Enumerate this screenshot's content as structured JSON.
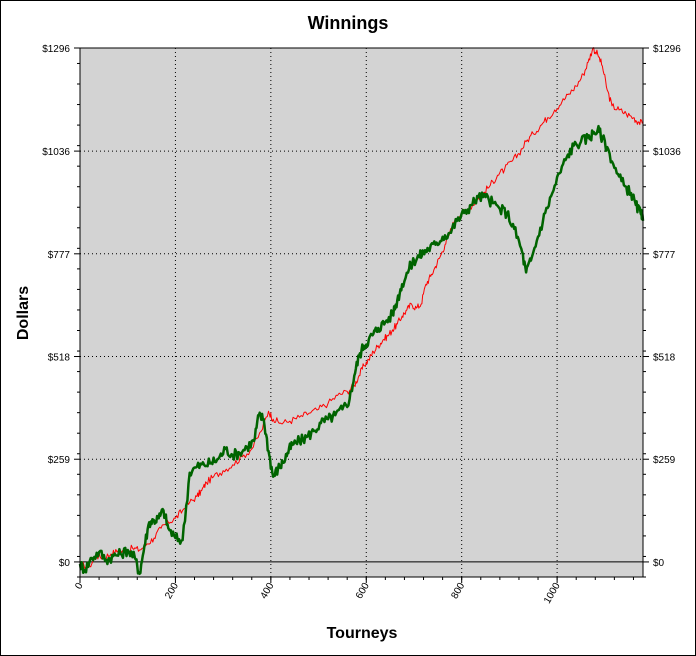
{
  "chart_data": {
    "type": "line",
    "title": "Winnings",
    "xlabel": "Tourneys",
    "ylabel": "Dollars",
    "xlim": [
      0,
      1180
    ],
    "ylim": [
      -38,
      1296
    ],
    "x_ticks": [
      0,
      200,
      400,
      600,
      800,
      1000
    ],
    "x_tick_labels": [
      "0",
      "200",
      "400",
      "600",
      "800",
      "1000"
    ],
    "y_ticks": [
      0,
      259,
      518,
      777,
      1036,
      1296
    ],
    "y_tick_labels": [
      "$0",
      "$259",
      "$518",
      "$777",
      "$1036",
      "$1296"
    ],
    "grid": true,
    "plot_background": "#d3d3d3",
    "series": [
      {
        "color": "#ff0000",
        "x": [
          0,
          20,
          35,
          50,
          65,
          80,
          95,
          110,
          125,
          140,
          155,
          170,
          185,
          200,
          215,
          230,
          245,
          255,
          265,
          280,
          300,
          320,
          340,
          360,
          380,
          395,
          405,
          420,
          440,
          460,
          480,
          500,
          520,
          540,
          560,
          575,
          585,
          595,
          605,
          615,
          625,
          635,
          645,
          655,
          665,
          675,
          685,
          695,
          705,
          715,
          725,
          735,
          745,
          755,
          765,
          775,
          785,
          800,
          815,
          830,
          845,
          860,
          875,
          890,
          905,
          920,
          935,
          950,
          965,
          980,
          995,
          1010,
          1025,
          1040,
          1055,
          1065,
          1075,
          1085,
          1095,
          1105,
          1115,
          1130,
          1145,
          1160,
          1170,
          1180
        ],
        "y": [
          -8,
          -10,
          15,
          12,
          20,
          28,
          25,
          35,
          30,
          45,
          60,
          85,
          100,
          110,
          130,
          150,
          165,
          180,
          200,
          215,
          230,
          245,
          265,
          285,
          330,
          380,
          360,
          350,
          355,
          365,
          375,
          385,
          400,
          420,
          430,
          445,
          470,
          495,
          510,
          530,
          545,
          560,
          570,
          585,
          600,
          620,
          635,
          650,
          640,
          650,
          700,
          720,
          745,
          770,
          800,
          830,
          860,
          880,
          890,
          910,
          930,
          950,
          975,
          990,
          1010,
          1030,
          1060,
          1080,
          1100,
          1120,
          1140,
          1160,
          1180,
          1200,
          1230,
          1260,
          1296,
          1280,
          1250,
          1190,
          1150,
          1140,
          1130,
          1120,
          1110,
          1105
        ]
      },
      {
        "color": "#006400",
        "x": [
          0,
          10,
          25,
          40,
          55,
          70,
          85,
          100,
          115,
          125,
          135,
          145,
          155,
          165,
          175,
          185,
          200,
          215,
          230,
          245,
          260,
          275,
          290,
          305,
          320,
          335,
          350,
          365,
          375,
          385,
          395,
          405,
          415,
          425,
          435,
          445,
          460,
          475,
          490,
          505,
          520,
          535,
          550,
          565,
          575,
          585,
          595,
          605,
          615,
          625,
          640,
          655,
          665,
          675,
          690,
          700,
          710,
          720,
          730,
          745,
          760,
          775,
          790,
          805,
          820,
          835,
          850,
          865,
          880,
          895,
          910,
          925,
          935,
          945,
          960,
          975,
          990,
          1005,
          1020,
          1035,
          1050,
          1065,
          1075,
          1085,
          1095,
          1110,
          1125,
          1140,
          1155,
          1165,
          1175,
          1180
        ],
        "y": [
          -5,
          -20,
          10,
          25,
          5,
          15,
          20,
          30,
          10,
          -30,
          40,
          100,
          105,
          110,
          130,
          85,
          60,
          55,
          225,
          240,
          245,
          250,
          260,
          285,
          270,
          275,
          290,
          305,
          370,
          360,
          280,
          215,
          235,
          250,
          275,
          295,
          305,
          315,
          330,
          350,
          360,
          370,
          385,
          410,
          470,
          520,
          545,
          560,
          575,
          590,
          605,
          625,
          660,
          700,
          740,
          760,
          770,
          780,
          790,
          800,
          820,
          830,
          860,
          880,
          900,
          920,
          920,
          905,
          890,
          880,
          840,
          790,
          730,
          760,
          820,
          880,
          930,
          980,
          1020,
          1050,
          1060,
          1070,
          1080,
          1090,
          1070,
          1030,
          980,
          950,
          930,
          900,
          880,
          860
        ]
      }
    ]
  }
}
